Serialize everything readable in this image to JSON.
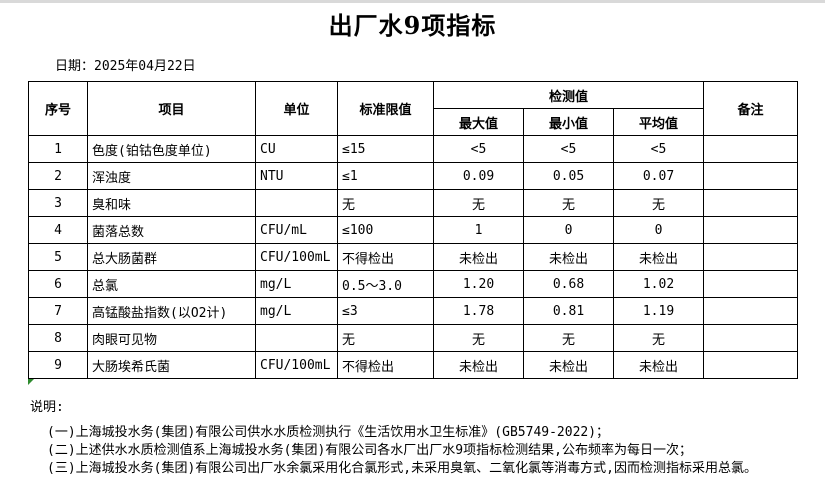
{
  "page": {
    "title": "出厂水9项指标",
    "date_label": "日期：2025年04月22日"
  },
  "table": {
    "headers": {
      "seq": "序号",
      "item": "项目",
      "unit": "单位",
      "limit": "标准限值",
      "detection": "检测值",
      "max": "最大值",
      "min": "最小值",
      "avg": "平均值",
      "remark": "备注"
    },
    "rows": [
      {
        "seq": "1",
        "item": "色度(铂钴色度单位)",
        "unit": "CU",
        "limit": "≤15",
        "max": "<5",
        "min": "<5",
        "avg": "<5",
        "remark": ""
      },
      {
        "seq": "2",
        "item": "浑浊度",
        "unit": "NTU",
        "limit": "≤1",
        "max": "0.09",
        "min": "0.05",
        "avg": "0.07",
        "remark": ""
      },
      {
        "seq": "3",
        "item": "臭和味",
        "unit": "",
        "limit": "无",
        "max": "无",
        "min": "无",
        "avg": "无",
        "remark": ""
      },
      {
        "seq": "4",
        "item": "菌落总数",
        "unit": "CFU/mL",
        "limit": "≤100",
        "max": "1",
        "min": "0",
        "avg": "0",
        "remark": ""
      },
      {
        "seq": "5",
        "item": "总大肠菌群",
        "unit": "CFU/100mL",
        "limit": "不得检出",
        "max": "未检出",
        "min": "未检出",
        "avg": "未检出",
        "remark": ""
      },
      {
        "seq": "6",
        "item": "总氯",
        "unit": "mg/L",
        "limit": "0.5～3.0",
        "max": "1.20",
        "min": "0.68",
        "avg": "1.02",
        "remark": ""
      },
      {
        "seq": "7",
        "item": "高锰酸盐指数(以O2计)",
        "unit": "mg/L",
        "limit": "≤3",
        "max": "1.78",
        "min": "0.81",
        "avg": "1.19",
        "remark": ""
      },
      {
        "seq": "8",
        "item": "肉眼可见物",
        "unit": "",
        "limit": "无",
        "max": "无",
        "min": "无",
        "avg": "无",
        "remark": ""
      },
      {
        "seq": "9",
        "item": "大肠埃希氏菌",
        "unit": "CFU/100mL",
        "limit": "不得检出",
        "max": "未检出",
        "min": "未检出",
        "avg": "未检出",
        "remark": ""
      }
    ]
  },
  "notes": {
    "label": "说明:",
    "lines": [
      "(一)上海城投水务(集团)有限公司供水水质检测执行《生活饮用水卫生标准》(GB5749-2022)；",
      "(二)上述供水水质检测值系上海城投水务(集团)有限公司各水厂出厂水9项指标检测结果,公布频率为每日一次；",
      "(三)上海城投水务(集团)有限公司出厂水余氯采用化合氯形式,未采用臭氧、二氧化氯等消毒方式,因而检测指标采用总氯。"
    ]
  }
}
